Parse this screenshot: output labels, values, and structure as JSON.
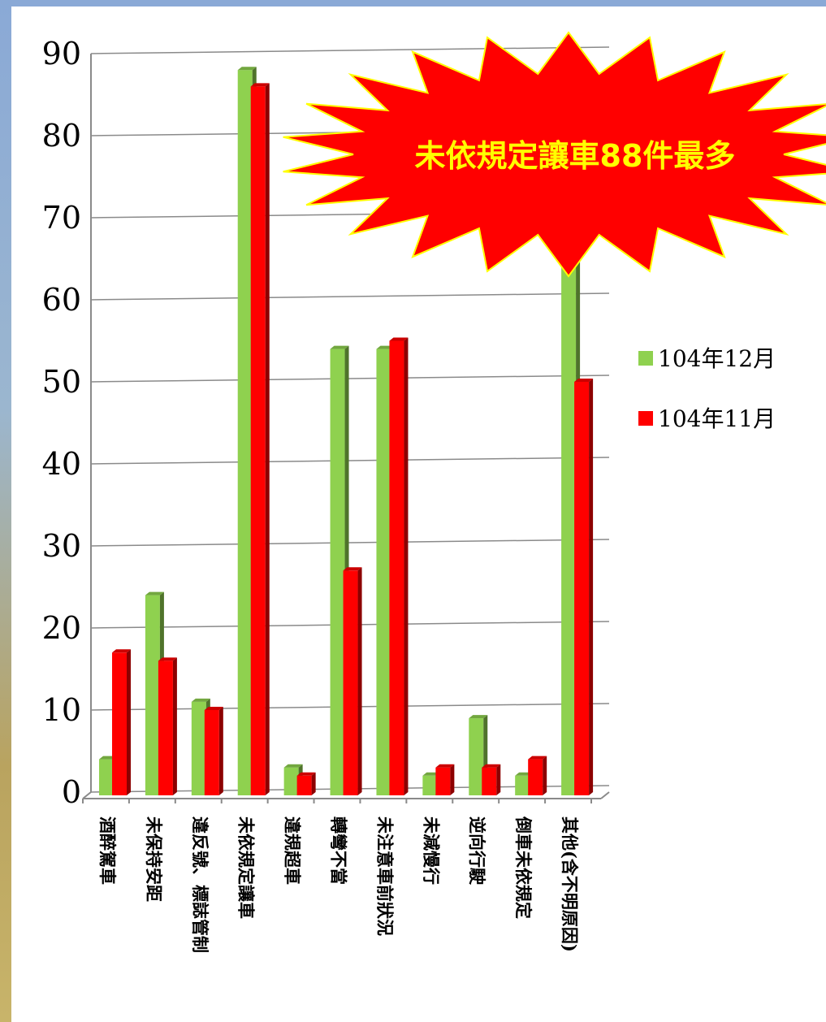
{
  "chart_data": {
    "type": "bar",
    "categories": [
      "酒醉駕車",
      "未保持安距",
      "違反號、標誌管制",
      "未依規定讓車",
      "違規超車",
      "轉彎不當",
      "未注意車前狀況",
      "未減慢行",
      "逆向行駛",
      "倒車未依規定",
      "其他(含不明原因)"
    ],
    "series": [
      {
        "name": "104年12月",
        "color": "#8fd14f",
        "values": [
          4,
          24,
          11,
          88,
          3,
          54,
          54,
          2,
          9,
          2,
          68
        ]
      },
      {
        "name": "104年11月",
        "color": "#ff0000",
        "values": [
          17,
          16,
          10,
          86,
          2,
          27,
          55,
          3,
          3,
          4,
          50
        ]
      }
    ],
    "ylim": [
      0,
      90
    ],
    "yticks": [
      0,
      10,
      20,
      30,
      40,
      50,
      60,
      70,
      80,
      90
    ],
    "grid": true,
    "legend_position": "right"
  },
  "annotation": {
    "text": "未依規定讓車88件最多",
    "fill": "#ff0000",
    "outline": "#ffff00",
    "text_color": "#ffff00"
  }
}
